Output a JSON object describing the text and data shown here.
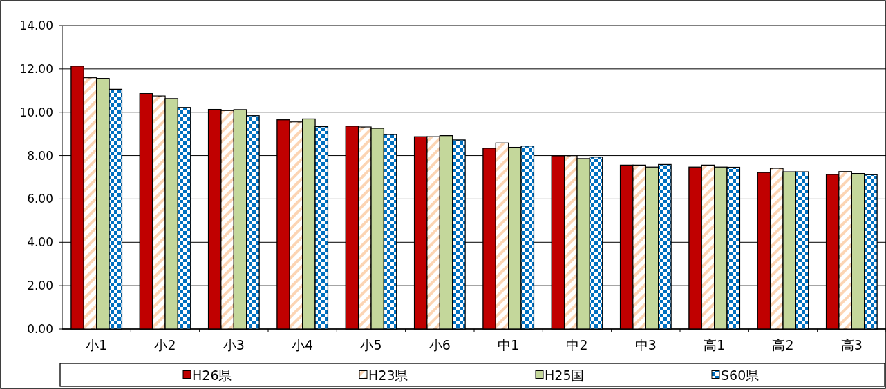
{
  "chart_data": {
    "type": "bar",
    "categories": [
      "小1",
      "小2",
      "小3",
      "小4",
      "小5",
      "小6",
      "中1",
      "中2",
      "中3",
      "高1",
      "高2",
      "高3"
    ],
    "series": [
      {
        "name": "H26県",
        "color": "#c00000",
        "values": [
          12.13,
          10.86,
          10.13,
          9.65,
          9.36,
          8.87,
          8.34,
          7.99,
          7.56,
          7.47,
          7.22,
          7.13
        ]
      },
      {
        "name": "H23県",
        "color": "#fcd5b4",
        "values": [
          11.59,
          10.75,
          10.08,
          9.55,
          9.32,
          8.87,
          8.58,
          7.99,
          7.56,
          7.56,
          7.41,
          7.26
        ]
      },
      {
        "name": "H25国",
        "color": "#c4d79b",
        "values": [
          11.56,
          10.63,
          10.12,
          9.69,
          9.26,
          8.92,
          8.38,
          7.86,
          7.47,
          7.47,
          7.25,
          7.17
        ]
      },
      {
        "name": "S60県",
        "color": "#0070c0",
        "values": [
          11.06,
          10.22,
          9.84,
          9.34,
          8.97,
          8.72,
          8.44,
          7.93,
          7.59,
          7.46,
          7.25,
          7.12
        ]
      }
    ],
    "ylim": [
      0,
      14
    ],
    "yticks": [
      {
        "value": 0,
        "label": "0.00"
      },
      {
        "value": 2,
        "label": "2.00"
      },
      {
        "value": 4,
        "label": "4.00"
      },
      {
        "value": 6,
        "label": "6.00"
      },
      {
        "value": 8,
        "label": "8.00"
      },
      {
        "value": 10,
        "label": "10.00"
      },
      {
        "value": 12,
        "label": "12.00"
      },
      {
        "value": 14,
        "label": "14.00"
      }
    ],
    "grid": "y",
    "legend": "bottom"
  }
}
